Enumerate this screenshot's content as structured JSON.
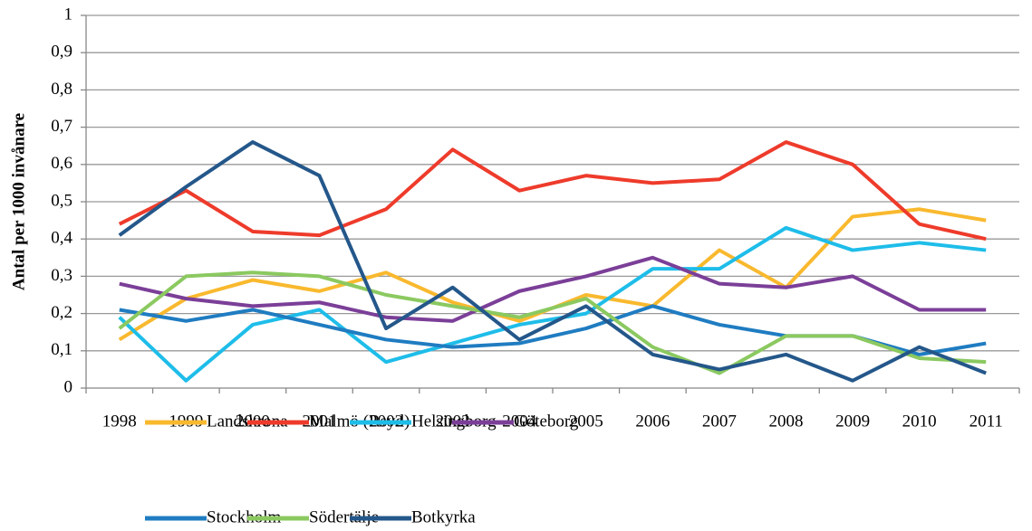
{
  "chart_data": {
    "type": "line",
    "ylabel": "Antal per 1000 invånare",
    "categories": [
      "1998",
      "1999",
      "2000",
      "2001",
      "2002",
      "2003",
      "2004",
      "2005",
      "2006",
      "2007",
      "2008",
      "2009",
      "2010",
      "2011"
    ],
    "series": [
      {
        "name": "Landskrona",
        "color": "#f9b92e",
        "values": [
          0.13,
          0.24,
          0.29,
          0.26,
          0.31,
          0.23,
          0.18,
          0.25,
          0.22,
          0.37,
          0.27,
          0.46,
          0.48,
          0.45
        ]
      },
      {
        "name": "Malmö (Rsyd)",
        "color": "#ee3b2b",
        "values": [
          0.44,
          0.53,
          0.42,
          0.41,
          0.48,
          0.64,
          0.53,
          0.57,
          0.55,
          0.56,
          0.66,
          0.6,
          0.44,
          0.4
        ]
      },
      {
        "name": "Helsingborg",
        "color": "#1ebde9",
        "values": [
          0.19,
          0.02,
          0.17,
          0.21,
          0.07,
          0.12,
          0.17,
          0.2,
          0.32,
          0.32,
          0.43,
          0.37,
          0.39,
          0.37
        ]
      },
      {
        "name": "Göteborg",
        "color": "#7b3f98",
        "values": [
          0.28,
          0.24,
          0.22,
          0.23,
          0.19,
          0.18,
          0.26,
          0.3,
          0.35,
          0.28,
          0.27,
          0.3,
          0.21,
          0.21
        ]
      },
      {
        "name": "Stockholm",
        "color": "#1f7cc1",
        "values": [
          0.21,
          0.18,
          0.21,
          0.17,
          0.13,
          0.11,
          0.12,
          0.16,
          0.22,
          0.17,
          0.14,
          0.14,
          0.09,
          0.12
        ]
      },
      {
        "name": "Södertälje",
        "color": "#8bc960",
        "values": [
          0.16,
          0.3,
          0.31,
          0.3,
          0.25,
          0.22,
          0.19,
          0.24,
          0.11,
          0.04,
          0.14,
          0.14,
          0.08,
          0.07
        ]
      },
      {
        "name": "Botkyrka",
        "color": "#24578a",
        "values": [
          0.41,
          0.54,
          0.66,
          0.57,
          0.16,
          0.27,
          0.13,
          0.22,
          0.09,
          0.05,
          0.09,
          0.02,
          0.11,
          0.04
        ]
      }
    ],
    "ylim": [
      0,
      1
    ],
    "yticks": [
      0,
      {
        "value": 0.1,
        "label": "0,1"
      },
      {
        "value": 0.2,
        "label": "0,2"
      },
      {
        "value": 0.3,
        "label": "0,3"
      },
      {
        "value": 0.4,
        "label": "0,4"
      },
      {
        "value": 0.5,
        "label": "0,5"
      },
      {
        "value": 0.6,
        "label": "0,6"
      },
      {
        "value": 0.7,
        "label": "0,7"
      },
      {
        "value": 0.8,
        "label": "0,8"
      },
      {
        "value": 0.9,
        "label": "0,9"
      },
      1
    ],
    "grid": true
  }
}
